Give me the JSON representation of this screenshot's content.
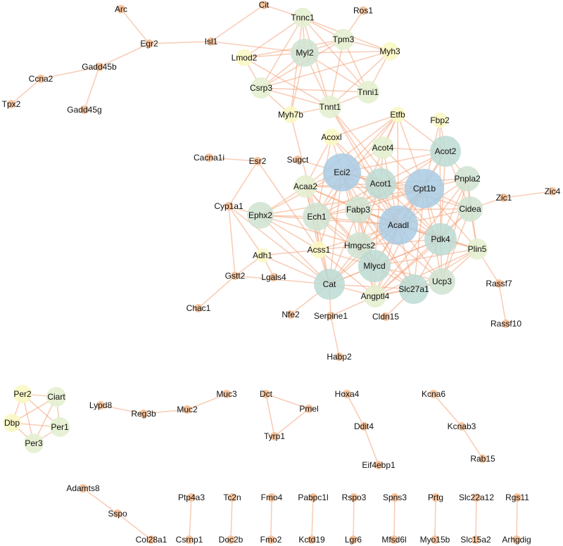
{
  "colors": {
    "edge": "#f2a57e",
    "deg_small": "#f6be94",
    "deg_yellow": "#f9f8c4",
    "deg_lightgreen": "#e4efd0",
    "deg_green": "#cfe3d1",
    "deg_teal": "#bcdad4",
    "deg_blue": "#a9cbe4"
  },
  "nodes": [
    {
      "id": "Arc",
      "label": "Arc"
    },
    {
      "id": "Egr2",
      "label": "Egr2"
    },
    {
      "id": "Isl1",
      "label": "Isl1"
    },
    {
      "id": "Cit",
      "label": "Cit"
    },
    {
      "id": "Tnnc1",
      "label": "Tnnc1"
    },
    {
      "id": "Ros1",
      "label": "Ros1"
    },
    {
      "id": "Myl2",
      "label": "Myl2"
    },
    {
      "id": "Tpm3",
      "label": "Tpm3"
    },
    {
      "id": "Myh3",
      "label": "Myh3"
    },
    {
      "id": "Lmod2",
      "label": "Lmod2"
    },
    {
      "id": "Gadd45b",
      "label": "Gadd45b"
    },
    {
      "id": "Ccna2",
      "label": "Ccna2"
    },
    {
      "id": "Tpx2",
      "label": "Tpx2"
    },
    {
      "id": "Gadd45g",
      "label": "Gadd45g"
    },
    {
      "id": "Csrp3",
      "label": "Csrp3"
    },
    {
      "id": "Tnni1",
      "label": "Tnni1"
    },
    {
      "id": "Tnnt1",
      "label": "Tnnt1"
    },
    {
      "id": "Myh7b",
      "label": "Myh7b"
    },
    {
      "id": "Etfb",
      "label": "Etfb"
    },
    {
      "id": "Fbp2",
      "label": "Fbp2"
    },
    {
      "id": "Acoxl",
      "label": "Acoxl"
    },
    {
      "id": "Acot4",
      "label": "Acot4"
    },
    {
      "id": "Acot2",
      "label": "Acot2"
    },
    {
      "id": "Sugct",
      "label": "Sugct"
    },
    {
      "id": "Cacna1i",
      "label": "Cacna1i"
    },
    {
      "id": "Esr2",
      "label": "Esr2"
    },
    {
      "id": "Eci2",
      "label": "Eci2"
    },
    {
      "id": "Acot1",
      "label": "Acot1"
    },
    {
      "id": "Cpt1b",
      "label": "Cpt1b"
    },
    {
      "id": "Pnpla2",
      "label": "Pnpla2"
    },
    {
      "id": "Acaa2",
      "label": "Acaa2"
    },
    {
      "id": "Zic1",
      "label": "Zic1"
    },
    {
      "id": "Zic4",
      "label": "Zic4"
    },
    {
      "id": "Cyp1a1",
      "label": "Cyp1a1"
    },
    {
      "id": "Fabp3",
      "label": "Fabp3"
    },
    {
      "id": "Cidea",
      "label": "Cidea"
    },
    {
      "id": "Ephx2",
      "label": "Ephx2"
    },
    {
      "id": "Ech1",
      "label": "Ech1"
    },
    {
      "id": "Acadl",
      "label": "Acadl"
    },
    {
      "id": "Pdk4",
      "label": "Pdk4"
    },
    {
      "id": "Adh1",
      "label": "Adh1"
    },
    {
      "id": "Acss1",
      "label": "Acss1"
    },
    {
      "id": "Hmgcs2",
      "label": "Hmgcs2"
    },
    {
      "id": "Plin5",
      "label": "Plin5"
    },
    {
      "id": "Lgals4",
      "label": "Lgals4"
    },
    {
      "id": "Gstt2",
      "label": "Gstt2"
    },
    {
      "id": "Mlycd",
      "label": "Mlycd"
    },
    {
      "id": "Rassf7",
      "label": "Rassf7"
    },
    {
      "id": "Cat",
      "label": "Cat"
    },
    {
      "id": "Ucp3",
      "label": "Ucp3"
    },
    {
      "id": "Slc27a1",
      "label": "Slc27a1"
    },
    {
      "id": "Angptl4",
      "label": "Angptl4"
    },
    {
      "id": "Chac1",
      "label": "Chac1"
    },
    {
      "id": "Nfe2",
      "label": "Nfe2"
    },
    {
      "id": "Serpine1",
      "label": "Serpine1"
    },
    {
      "id": "Cldn15",
      "label": "Cldn15"
    },
    {
      "id": "Rassf10",
      "label": "Rassf10"
    },
    {
      "id": "Habp2",
      "label": "Habp2"
    },
    {
      "id": "Per2",
      "label": "Per2"
    },
    {
      "id": "Ciart",
      "label": "Ciart"
    },
    {
      "id": "Dbp",
      "label": "Dbp"
    },
    {
      "id": "Per1",
      "label": "Per1"
    },
    {
      "id": "Per3",
      "label": "Per3"
    },
    {
      "id": "Lypd8",
      "label": "Lypd8"
    },
    {
      "id": "Reg3b",
      "label": "Reg3b"
    },
    {
      "id": "Muc2",
      "label": "Muc2"
    },
    {
      "id": "Muc3",
      "label": "Muc3"
    },
    {
      "id": "Dct",
      "label": "Dct"
    },
    {
      "id": "Pmel",
      "label": "Pmel"
    },
    {
      "id": "Tyrp1",
      "label": "Tyrp1"
    },
    {
      "id": "Hoxa4",
      "label": "Hoxa4"
    },
    {
      "id": "Ddit4",
      "label": "Ddit4"
    },
    {
      "id": "Eif4ebp1",
      "label": "Eif4ebp1"
    },
    {
      "id": "Kcna6",
      "label": "Kcna6"
    },
    {
      "id": "Kcnab3",
      "label": "Kcnab3"
    },
    {
      "id": "Rab15",
      "label": "Rab15"
    },
    {
      "id": "Adamts8",
      "label": "Adamts8"
    },
    {
      "id": "Sspo",
      "label": "Sspo"
    },
    {
      "id": "Col28a1",
      "label": "Col28a1"
    },
    {
      "id": "Ptp4a3",
      "label": "Ptp4a3"
    },
    {
      "id": "Csrnp1",
      "label": "Csrnp1"
    },
    {
      "id": "Tc2n",
      "label": "Tc2n"
    },
    {
      "id": "Doc2b",
      "label": "Doc2b"
    },
    {
      "id": "Fmo4",
      "label": "Fmo4"
    },
    {
      "id": "Fmo2",
      "label": "Fmo2"
    },
    {
      "id": "Pabpc1l",
      "label": "Pabpc1l"
    },
    {
      "id": "Kctd19",
      "label": "Kctd19"
    },
    {
      "id": "Rspo3",
      "label": "Rspo3"
    },
    {
      "id": "Lgr6",
      "label": "Lgr6"
    },
    {
      "id": "Spns3",
      "label": "Spns3"
    },
    {
      "id": "Mfsd6l",
      "label": "Mfsd6l"
    },
    {
      "id": "Prtg",
      "label": "Prtg"
    },
    {
      "id": "Myo15b",
      "label": "Myo15b"
    },
    {
      "id": "Slc22a12",
      "label": "Slc22a12"
    },
    {
      "id": "Slc15a2",
      "label": "Slc15a2"
    },
    {
      "id": "Rgs11",
      "label": "Rgs11"
    },
    {
      "id": "Arhgdig",
      "label": "Arhgdig"
    }
  ],
  "edges": [
    [
      "Arc",
      "Egr2"
    ],
    [
      "Egr2",
      "Isl1"
    ],
    [
      "Egr2",
      "Gadd45b"
    ],
    [
      "Isl1",
      "Cit"
    ],
    [
      "Gadd45b",
      "Ccna2"
    ],
    [
      "Gadd45b",
      "Gadd45g"
    ],
    [
      "Ccna2",
      "Tpx2"
    ],
    [
      "Tnnc1",
      "Myl2"
    ],
    [
      "Tnnc1",
      "Tpm3"
    ],
    [
      "Tnnc1",
      "Myh3"
    ],
    [
      "Tnnc1",
      "Lmod2"
    ],
    [
      "Tnnc1",
      "Csrp3"
    ],
    [
      "Tnnc1",
      "Tnni1"
    ],
    [
      "Tnnc1",
      "Tnnt1"
    ],
    [
      "Tnnc1",
      "Myh7b"
    ],
    [
      "Tnnc1",
      "Cit"
    ],
    [
      "Myl2",
      "Tpm3"
    ],
    [
      "Myl2",
      "Myh3"
    ],
    [
      "Myl2",
      "Lmod2"
    ],
    [
      "Myl2",
      "Csrp3"
    ],
    [
      "Myl2",
      "Tnni1"
    ],
    [
      "Myl2",
      "Tnnt1"
    ],
    [
      "Myl2",
      "Myh7b"
    ],
    [
      "Myl2",
      "Isl1"
    ],
    [
      "Tpm3",
      "Ros1"
    ],
    [
      "Tpm3",
      "Myh3"
    ],
    [
      "Tpm3",
      "Csrp3"
    ],
    [
      "Tpm3",
      "Tnni1"
    ],
    [
      "Tpm3",
      "Tnnt1"
    ],
    [
      "Tpm3",
      "Lmod2"
    ],
    [
      "Myh3",
      "Csrp3"
    ],
    [
      "Myh3",
      "Tnni1"
    ],
    [
      "Myh3",
      "Tnnt1"
    ],
    [
      "Lmod2",
      "Csrp3"
    ],
    [
      "Lmod2",
      "Tnnt1"
    ],
    [
      "Csrp3",
      "Tnni1"
    ],
    [
      "Csrp3",
      "Tnnt1"
    ],
    [
      "Csrp3",
      "Myh7b"
    ],
    [
      "Tnni1",
      "Tnnt1"
    ],
    [
      "Tnnt1",
      "Myh7b"
    ],
    [
      "Tnnt1",
      "Acot1"
    ],
    [
      "Tnnt1",
      "Pdk4"
    ],
    [
      "Tnnt1",
      "Acadl"
    ],
    [
      "Myh7b",
      "Ech1"
    ],
    [
      "Eci2",
      "Acot2"
    ],
    [
      "Eci2",
      "Acot1"
    ],
    [
      "Eci2",
      "Cpt1b"
    ],
    [
      "Eci2",
      "Acaa2"
    ],
    [
      "Eci2",
      "Fabp3"
    ],
    [
      "Eci2",
      "Ech1"
    ],
    [
      "Eci2",
      "Acadl"
    ],
    [
      "Eci2",
      "Pdk4"
    ],
    [
      "Eci2",
      "Hmgcs2"
    ],
    [
      "Eci2",
      "Mlycd"
    ],
    [
      "Eci2",
      "Cat"
    ],
    [
      "Eci2",
      "Acot4"
    ],
    [
      "Eci2",
      "Acoxl"
    ],
    [
      "Eci2",
      "Etfb"
    ],
    [
      "Eci2",
      "Ephx2"
    ],
    [
      "Eci2",
      "Acss1"
    ],
    [
      "Eci2",
      "Cidea"
    ],
    [
      "Eci2",
      "Slc27a1"
    ],
    [
      "Cpt1b",
      "Acot2"
    ],
    [
      "Cpt1b",
      "Acot1"
    ],
    [
      "Cpt1b",
      "Acaa2"
    ],
    [
      "Cpt1b",
      "Fabp3"
    ],
    [
      "Cpt1b",
      "Ech1"
    ],
    [
      "Cpt1b",
      "Acadl"
    ],
    [
      "Cpt1b",
      "Pdk4"
    ],
    [
      "Cpt1b",
      "Hmgcs2"
    ],
    [
      "Cpt1b",
      "Mlycd"
    ],
    [
      "Cpt1b",
      "Cat"
    ],
    [
      "Cpt1b",
      "Pnpla2"
    ],
    [
      "Cpt1b",
      "Cidea"
    ],
    [
      "Cpt1b",
      "Ucp3"
    ],
    [
      "Cpt1b",
      "Slc27a1"
    ],
    [
      "Cpt1b",
      "Angptl4"
    ],
    [
      "Cpt1b",
      "Plin5"
    ],
    [
      "Cpt1b",
      "Etfb"
    ],
    [
      "Cpt1b",
      "Fbp2"
    ],
    [
      "Cpt1b",
      "Acot4"
    ],
    [
      "Cpt1b",
      "Ephx2"
    ],
    [
      "Acadl",
      "Acot2"
    ],
    [
      "Acadl",
      "Acot1"
    ],
    [
      "Acadl",
      "Acaa2"
    ],
    [
      "Acadl",
      "Fabp3"
    ],
    [
      "Acadl",
      "Ech1"
    ],
    [
      "Acadl",
      "Pdk4"
    ],
    [
      "Acadl",
      "Hmgcs2"
    ],
    [
      "Acadl",
      "Mlycd"
    ],
    [
      "Acadl",
      "Cat"
    ],
    [
      "Acadl",
      "Ucp3"
    ],
    [
      "Acadl",
      "Slc27a1"
    ],
    [
      "Acadl",
      "Angptl4"
    ],
    [
      "Acadl",
      "Plin5"
    ],
    [
      "Acadl",
      "Cidea"
    ],
    [
      "Acadl",
      "Pnpla2"
    ],
    [
      "Acadl",
      "Ephx2"
    ],
    [
      "Acadl",
      "Acss1"
    ],
    [
      "Acadl",
      "Etfb"
    ],
    [
      "Acadl",
      "Acot4"
    ],
    [
      "Acadl",
      "Acoxl"
    ],
    [
      "Mlycd",
      "Pdk4"
    ],
    [
      "Mlycd",
      "Hmgcs2"
    ],
    [
      "Mlycd",
      "Cat"
    ],
    [
      "Mlycd",
      "Ucp3"
    ],
    [
      "Mlycd",
      "Slc27a1"
    ],
    [
      "Mlycd",
      "Angptl4"
    ],
    [
      "Mlycd",
      "Fabp3"
    ],
    [
      "Mlycd",
      "Ech1"
    ],
    [
      "Mlycd",
      "Acot1"
    ],
    [
      "Mlycd",
      "Acaa2"
    ],
    [
      "Mlycd",
      "Plin5"
    ],
    [
      "Mlycd",
      "Acss1"
    ],
    [
      "Pdk4",
      "Ucp3"
    ],
    [
      "Pdk4",
      "Slc27a1"
    ],
    [
      "Pdk4",
      "Angptl4"
    ],
    [
      "Pdk4",
      "Plin5"
    ],
    [
      "Pdk4",
      "Cidea"
    ],
    [
      "Pdk4",
      "Pnpla2"
    ],
    [
      "Pdk4",
      "Acot1"
    ],
    [
      "Pdk4",
      "Fabp3"
    ],
    [
      "Pdk4",
      "Hmgcs2"
    ],
    [
      "Pdk4",
      "Cat"
    ],
    [
      "Pdk4",
      "Acot2"
    ],
    [
      "Pdk4",
      "Fbp2"
    ],
    [
      "Cat",
      "Ech1"
    ],
    [
      "Cat",
      "Acaa2"
    ],
    [
      "Cat",
      "Ephx2"
    ],
    [
      "Cat",
      "Hmgcs2"
    ],
    [
      "Cat",
      "Acss1"
    ],
    [
      "Cat",
      "Angptl4"
    ],
    [
      "Cat",
      "Fabp3"
    ],
    [
      "Cat",
      "Nfe2"
    ],
    [
      "Cat",
      "Adh1"
    ],
    [
      "Cat",
      "Cyp1a1"
    ],
    [
      "Cat",
      "Slc27a1"
    ],
    [
      "Ech1",
      "Acaa2"
    ],
    [
      "Ech1",
      "Ephx2"
    ],
    [
      "Ech1",
      "Fabp3"
    ],
    [
      "Ech1",
      "Hmgcs2"
    ],
    [
      "Ech1",
      "Acss1"
    ],
    [
      "Ech1",
      "Acot1"
    ],
    [
      "Ech1",
      "Acoxl"
    ],
    [
      "Ech1",
      "Etfb"
    ],
    [
      "Acot1",
      "Acot2"
    ],
    [
      "Acot1",
      "Acot4"
    ],
    [
      "Acot1",
      "Fabp3"
    ],
    [
      "Acot1",
      "Hmgcs2"
    ],
    [
      "Acot1",
      "Pnpla2"
    ],
    [
      "Acot1",
      "Acaa2"
    ],
    [
      "Acot1",
      "Acoxl"
    ],
    [
      "Acot1",
      "Sugct"
    ],
    [
      "Acot2",
      "Acot4"
    ],
    [
      "Acot2",
      "Pnpla2"
    ],
    [
      "Acot2",
      "Cidea"
    ],
    [
      "Acot2",
      "Fabp3"
    ],
    [
      "Acot2",
      "Etfb"
    ],
    [
      "Fabp3",
      "Hmgcs2"
    ],
    [
      "Fabp3",
      "Acaa2"
    ],
    [
      "Fabp3",
      "Slc27a1"
    ],
    [
      "Fabp3",
      "Ucp3"
    ],
    [
      "Fabp3",
      "Angptl4"
    ],
    [
      "Fabp3",
      "Cidea"
    ],
    [
      "Fabp3",
      "Plin5"
    ],
    [
      "Fabp3",
      "Etfb"
    ],
    [
      "Hmgcs2",
      "Acaa2"
    ],
    [
      "Hmgcs2",
      "Acss1"
    ],
    [
      "Hmgcs2",
      "Angptl4"
    ],
    [
      "Hmgcs2",
      "Slc27a1"
    ],
    [
      "Hmgcs2",
      "Ephx2"
    ],
    [
      "Cidea",
      "Pnpla2"
    ],
    [
      "Cidea",
      "Plin5"
    ],
    [
      "Cidea",
      "Ucp3"
    ],
    [
      "Cidea",
      "Zic1"
    ],
    [
      "Cidea",
      "Angptl4"
    ],
    [
      "Pnpla2",
      "Plin5"
    ],
    [
      "Pnpla2",
      "Angptl4"
    ],
    [
      "Pnpla2",
      "Ucp3"
    ],
    [
      "Plin5",
      "Ucp3"
    ],
    [
      "Plin5",
      "Slc27a1"
    ],
    [
      "Plin5",
      "Angptl4"
    ],
    [
      "Plin5",
      "Rassf7"
    ],
    [
      "Ucp3",
      "Slc27a1"
    ],
    [
      "Ucp3",
      "Angptl4"
    ],
    [
      "Slc27a1",
      "Angptl4"
    ],
    [
      "Slc27a1",
      "Cldn15"
    ],
    [
      "Angptl4",
      "Serpine1"
    ],
    [
      "Angptl4",
      "Acss1"
    ],
    [
      "Serpine1",
      "Habp2"
    ],
    [
      "Serpine1",
      "Cat"
    ],
    [
      "Ephx2",
      "Acaa2"
    ],
    [
      "Ephx2",
      "Cyp1a1"
    ],
    [
      "Ephx2",
      "Acss1"
    ],
    [
      "Acaa2",
      "Acss1"
    ],
    [
      "Acaa2",
      "Acoxl"
    ],
    [
      "Acaa2",
      "Etfb"
    ],
    [
      "Etfb",
      "Acoxl"
    ],
    [
      "Etfb",
      "Acot4"
    ],
    [
      "Fbp2",
      "Acot2"
    ],
    [
      "Acss1",
      "Adh1"
    ],
    [
      "Cacna1i",
      "Esr2"
    ],
    [
      "Esr2",
      "Cyp1a1"
    ],
    [
      "Esr2",
      "Acss1"
    ],
    [
      "Cyp1a1",
      "Gstt2"
    ],
    [
      "Cyp1a1",
      "Adh1"
    ],
    [
      "Adh1",
      "Gstt2"
    ],
    [
      "Adh1",
      "Lgals4"
    ],
    [
      "Gstt2",
      "Chac1"
    ],
    [
      "Gstt2",
      "Cat"
    ],
    [
      "Zic1",
      "Zic4"
    ],
    [
      "Rassf7",
      "Rassf10"
    ],
    [
      "Per2",
      "Ciart"
    ],
    [
      "Per2",
      "Dbp"
    ],
    [
      "Per2",
      "Per1"
    ],
    [
      "Per2",
      "Per3"
    ],
    [
      "Ciart",
      "Dbp"
    ],
    [
      "Ciart",
      "Per1"
    ],
    [
      "Ciart",
      "Per3"
    ],
    [
      "Dbp",
      "Per1"
    ],
    [
      "Dbp",
      "Per3"
    ],
    [
      "Per1",
      "Per3"
    ],
    [
      "Lypd8",
      "Reg3b"
    ],
    [
      "Reg3b",
      "Muc2"
    ],
    [
      "Muc2",
      "Muc3"
    ],
    [
      "Dct",
      "Pmel"
    ],
    [
      "Dct",
      "Tyrp1"
    ],
    [
      "Pmel",
      "Tyrp1"
    ],
    [
      "Hoxa4",
      "Ddit4"
    ],
    [
      "Ddit4",
      "Eif4ebp1"
    ],
    [
      "Kcna6",
      "Kcnab3"
    ],
    [
      "Kcnab3",
      "Rab15"
    ],
    [
      "Adamts8",
      "Sspo"
    ],
    [
      "Sspo",
      "Col28a1"
    ],
    [
      "Ptp4a3",
      "Csrnp1"
    ],
    [
      "Tc2n",
      "Doc2b"
    ],
    [
      "Fmo4",
      "Fmo2"
    ],
    [
      "Pabpc1l",
      "Kctd19"
    ],
    [
      "Rspo3",
      "Lgr6"
    ],
    [
      "Spns3",
      "Mfsd6l"
    ],
    [
      "Prtg",
      "Myo15b"
    ],
    [
      "Slc22a12",
      "Slc15a2"
    ],
    [
      "Rgs11",
      "Arhgdig"
    ]
  ]
}
